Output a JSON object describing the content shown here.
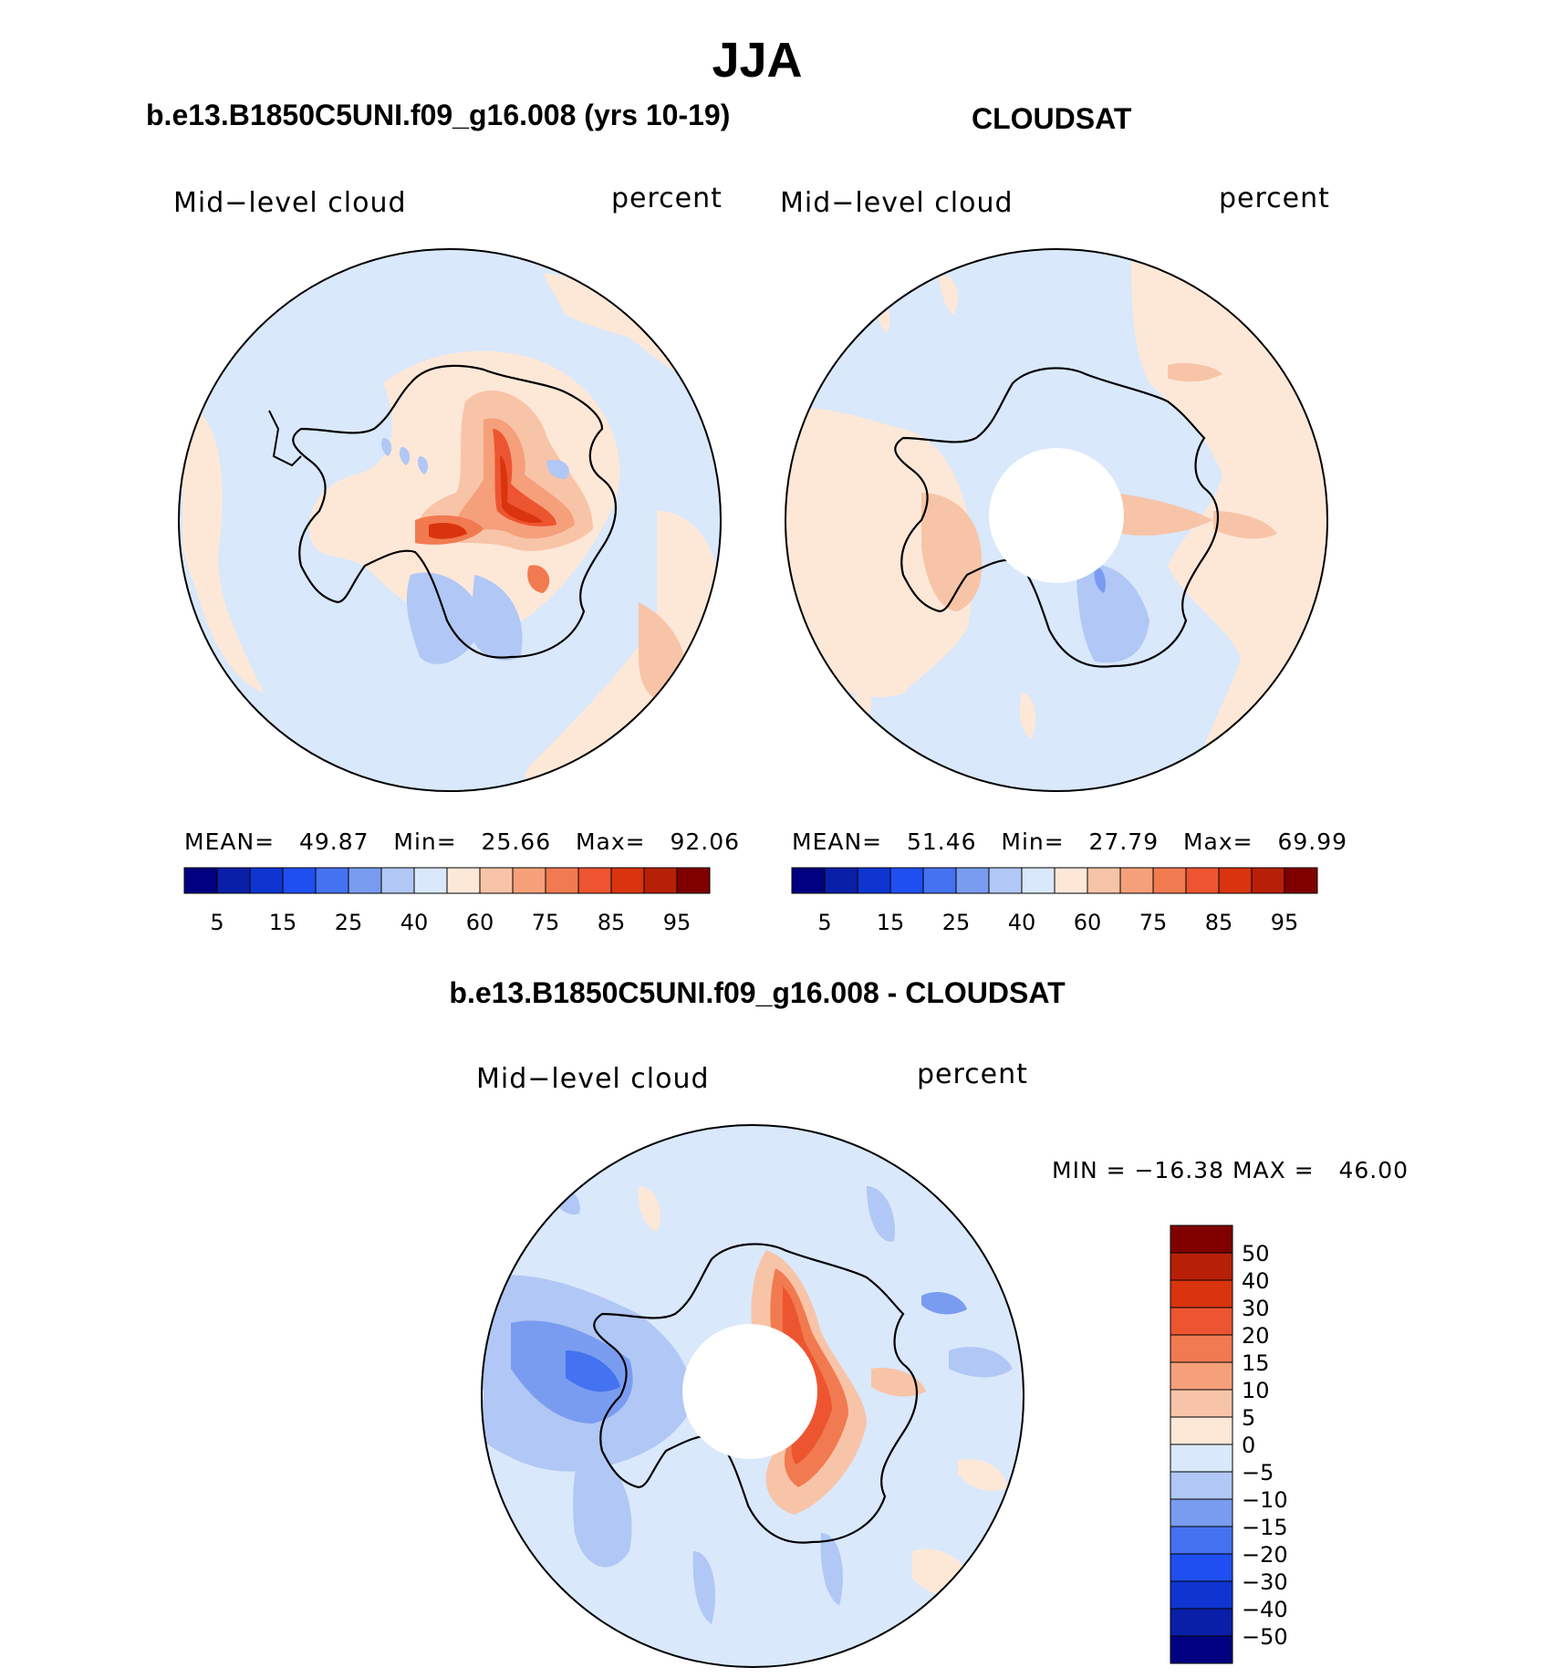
{
  "title": "JJA",
  "panels": [
    {
      "id": "model",
      "heading": "b.e13.B1850C5UNI.f09_g16.008 (yrs 10-19)",
      "left_label": "Mid−level cloud",
      "right_label": "percent",
      "stats": {
        "mean_label": "MEAN=",
        "mean": "49.87",
        "min_label": "Min=",
        "min": "25.66",
        "max_label": "Max=",
        "max": "92.06"
      },
      "colorbar_ticks": [
        "5",
        "15",
        "25",
        "40",
        "60",
        "75",
        "85",
        "95"
      ]
    },
    {
      "id": "obs",
      "heading": "CLOUDSAT",
      "left_label": "Mid−level cloud",
      "right_label": "percent",
      "stats": {
        "mean_label": "MEAN=",
        "mean": "51.46",
        "min_label": "Min=",
        "min": "27.79",
        "max_label": "Max=",
        "max": "69.99"
      },
      "colorbar_ticks": [
        "5",
        "15",
        "25",
        "40",
        "60",
        "75",
        "85",
        "95"
      ]
    },
    {
      "id": "diff",
      "heading": "b.e13.B1850C5UNI.f09_g16.008 - CLOUDSAT",
      "left_label": "Mid−level cloud",
      "right_label": "percent",
      "stats_line": "MIN = −16.38 MAX =   46.00",
      "colorbar_ticks": [
        "50",
        "40",
        "30",
        "20",
        "15",
        "10",
        "5",
        "0",
        "−5",
        "−10",
        "−15",
        "−20",
        "−30",
        "−40",
        "−50"
      ]
    }
  ],
  "colors": {
    "abs_scale": [
      "#000080",
      "#0a1fa8",
      "#0f35d1",
      "#1f4ff0",
      "#4472f0",
      "#7a9cf0",
      "#b1c7f5",
      "#d9e8fb",
      "#fde8d8",
      "#f8c4a8",
      "#f5a07a",
      "#f27a50",
      "#ed5530",
      "#d9340e",
      "#b72007",
      "#800000"
    ],
    "diff_scale": [
      "#000080",
      "#0a1fa8",
      "#0f35d1",
      "#1f4ff0",
      "#4472f0",
      "#7a9cf0",
      "#b1c7f5",
      "#d9e8fb",
      "#fde8d8",
      "#f8c4a8",
      "#f5a07a",
      "#f27a50",
      "#ed5530",
      "#d9340e",
      "#b72007",
      "#800000"
    ]
  }
}
